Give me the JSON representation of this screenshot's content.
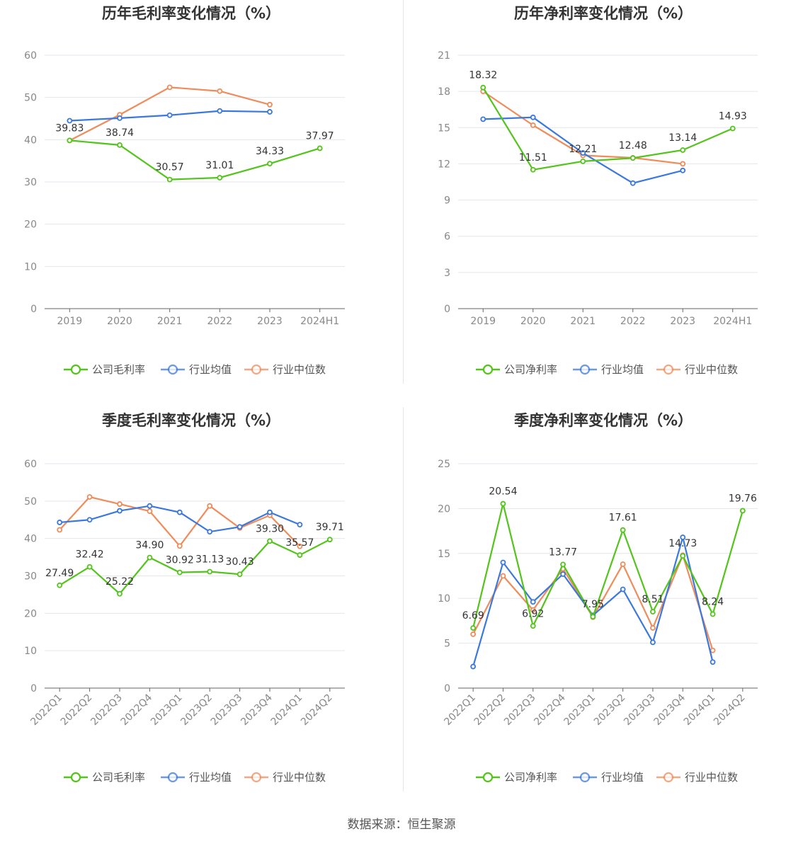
{
  "colors": {
    "company": "#52c41a",
    "avg": "#3a78de",
    "median": "#f08b5a"
  },
  "source_text": "数据来源：恒生聚源",
  "chart_data": [
    {
      "type": "line",
      "title": "历年毛利率变化情况（%）",
      "categories": [
        "2019",
        "2020",
        "2021",
        "2022",
        "2023",
        "2024H1"
      ],
      "ylim": [
        0,
        60
      ],
      "yticks": [
        0,
        10,
        20,
        30,
        40,
        50,
        60
      ],
      "rotate_x": false,
      "legend": [
        "公司毛利率",
        "行业均值",
        "行业中位数"
      ],
      "legend_position": "bottom",
      "series": [
        {
          "key": "company",
          "values": [
            39.83,
            38.74,
            30.57,
            31.01,
            34.33,
            37.97
          ],
          "labels": [
            "39.83",
            "38.74",
            "30.57",
            "31.01",
            "34.33",
            "37.97"
          ]
        },
        {
          "key": "avg",
          "values": [
            44.5,
            45.1,
            45.8,
            46.8,
            46.6,
            null
          ]
        },
        {
          "key": "median",
          "values": [
            39.8,
            45.9,
            52.4,
            51.5,
            48.3,
            null
          ]
        }
      ]
    },
    {
      "type": "line",
      "title": "历年净利率变化情况（%）",
      "categories": [
        "2019",
        "2020",
        "2021",
        "2022",
        "2023",
        "2024H1"
      ],
      "ylim": [
        0,
        21
      ],
      "yticks": [
        0,
        3,
        6,
        9,
        12,
        15,
        18,
        21
      ],
      "rotate_x": false,
      "legend": [
        "公司净利率",
        "行业均值",
        "行业中位数"
      ],
      "legend_position": "bottom",
      "series": [
        {
          "key": "company",
          "values": [
            18.32,
            11.51,
            12.21,
            12.48,
            13.14,
            14.93
          ],
          "labels": [
            "18.32",
            "11.51",
            "12.21",
            "12.48",
            "13.14",
            "14.93"
          ]
        },
        {
          "key": "avg",
          "values": [
            15.7,
            15.85,
            12.9,
            10.4,
            11.45,
            null
          ]
        },
        {
          "key": "median",
          "values": [
            18.0,
            15.2,
            12.7,
            12.5,
            12.0,
            null
          ]
        }
      ]
    },
    {
      "type": "line",
      "title": "季度毛利率变化情况（%）",
      "categories": [
        "2022Q1",
        "2022Q2",
        "2022Q3",
        "2022Q4",
        "2023Q1",
        "2023Q2",
        "2023Q3",
        "2023Q4",
        "2024Q1",
        "2024Q2"
      ],
      "ylim": [
        0,
        60
      ],
      "yticks": [
        0,
        10,
        20,
        30,
        40,
        50,
        60
      ],
      "rotate_x": true,
      "legend": [
        "公司毛利率",
        "行业均值",
        "行业中位数"
      ],
      "legend_position": "bottom",
      "series": [
        {
          "key": "company",
          "values": [
            27.49,
            32.42,
            25.22,
            34.9,
            30.92,
            31.13,
            30.43,
            39.3,
            35.57,
            39.71
          ],
          "labels": [
            "27.49",
            "32.42",
            "25.22",
            "34.90",
            "30.92",
            "31.13",
            "30.43",
            "39.30",
            "35.57",
            "39.71"
          ]
        },
        {
          "key": "avg",
          "values": [
            44.3,
            45.0,
            47.4,
            48.7,
            47.0,
            41.8,
            43.1,
            47.0,
            43.7,
            null
          ]
        },
        {
          "key": "median",
          "values": [
            42.3,
            51.1,
            49.2,
            47.3,
            38.0,
            48.7,
            42.8,
            46.2,
            37.9,
            null
          ]
        }
      ]
    },
    {
      "type": "line",
      "title": "季度净利率变化情况（%）",
      "categories": [
        "2022Q1",
        "2022Q2",
        "2022Q3",
        "2022Q4",
        "2023Q1",
        "2023Q2",
        "2023Q3",
        "2023Q4",
        "2024Q1",
        "2024Q2"
      ],
      "ylim": [
        0,
        25
      ],
      "yticks": [
        0,
        5,
        10,
        15,
        20,
        25
      ],
      "rotate_x": true,
      "legend": [
        "公司净利率",
        "行业均值",
        "行业中位数"
      ],
      "legend_position": "bottom",
      "series": [
        {
          "key": "company",
          "values": [
            6.69,
            20.54,
            6.92,
            13.77,
            7.95,
            17.61,
            8.51,
            14.73,
            8.24,
            19.76
          ],
          "labels": [
            "6.69",
            "20.54",
            "6.92",
            "13.77",
            "7.95",
            "17.61",
            "8.51",
            "14.73",
            "8.24",
            "19.76"
          ]
        },
        {
          "key": "avg",
          "values": [
            2.4,
            14.0,
            9.6,
            12.7,
            8.1,
            11.0,
            5.1,
            16.8,
            2.9,
            null
          ]
        },
        {
          "key": "median",
          "values": [
            6.0,
            12.5,
            8.7,
            13.3,
            7.9,
            13.8,
            6.7,
            14.8,
            4.2,
            null
          ]
        }
      ]
    }
  ]
}
